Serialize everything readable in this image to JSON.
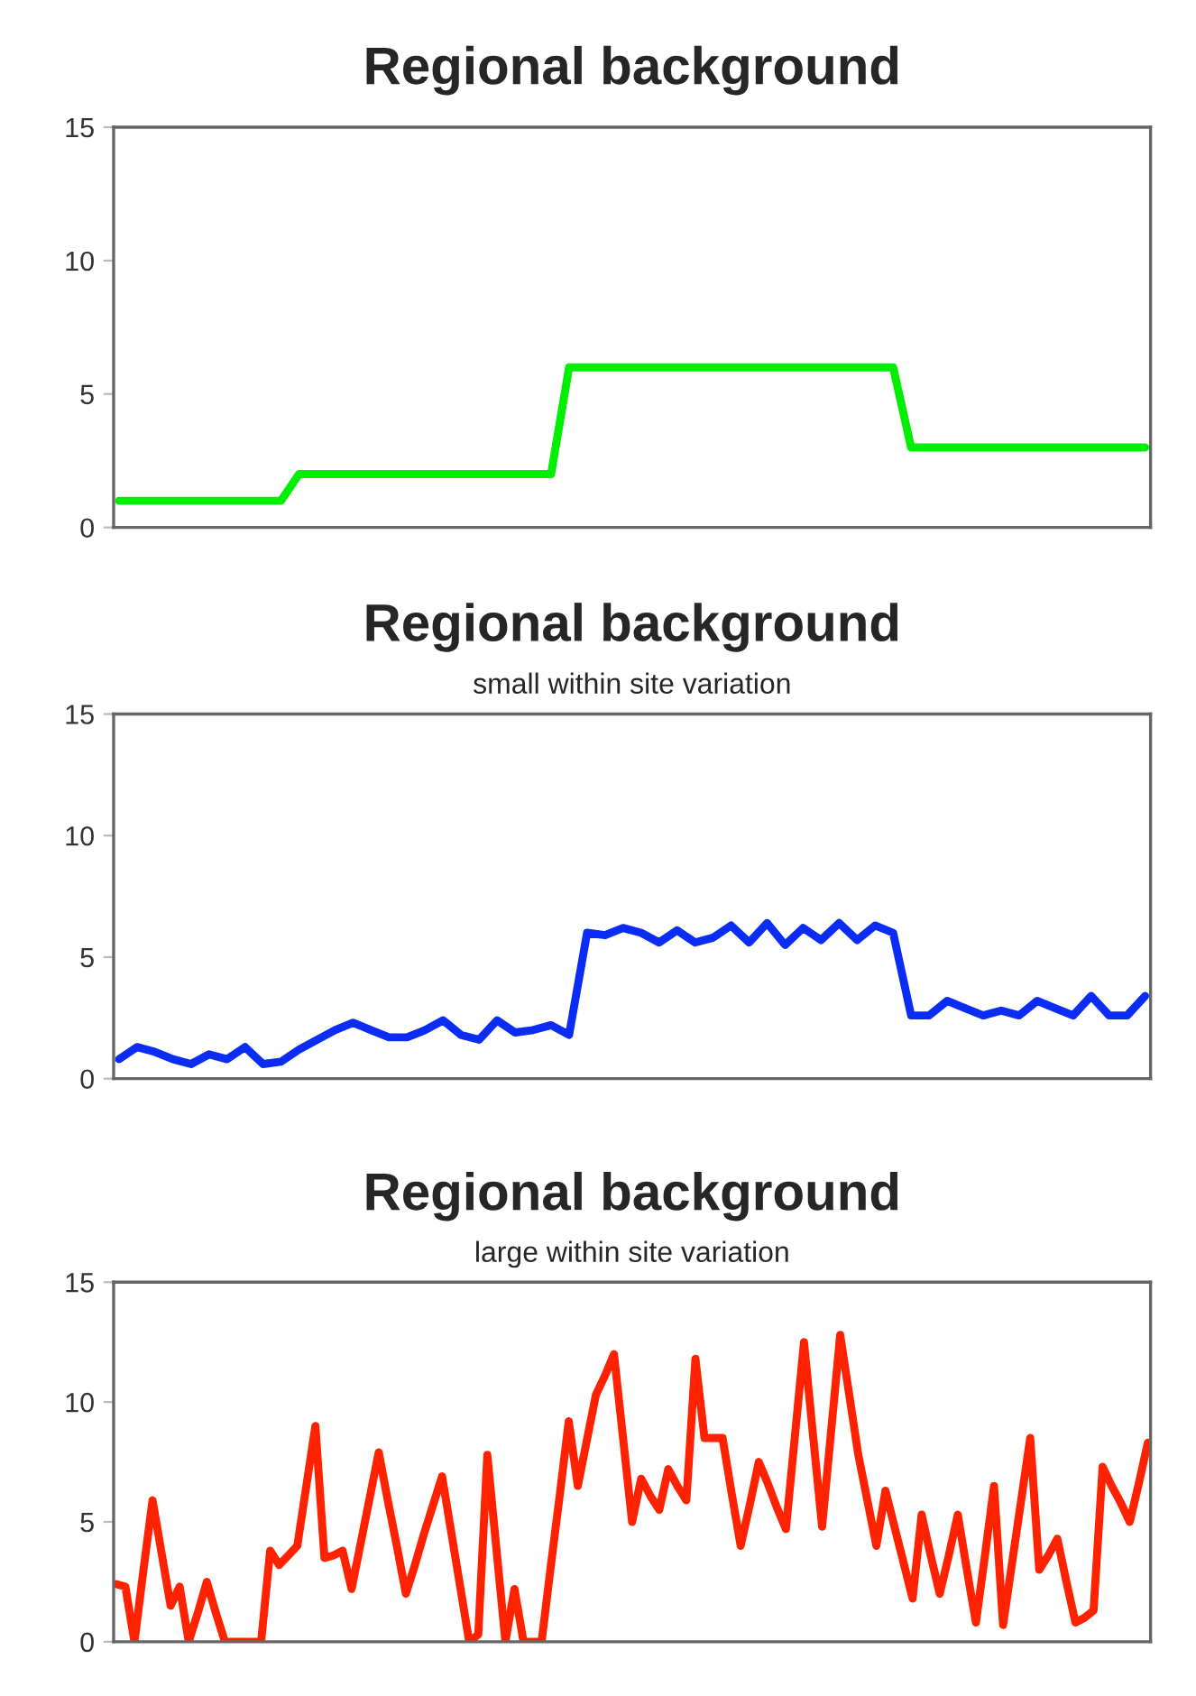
{
  "chart_data": [
    {
      "type": "line",
      "title": "Regional background",
      "categories": [
        null,
        null,
        null,
        null,
        null,
        null,
        null,
        null,
        null,
        null,
        null,
        null,
        null,
        null,
        null,
        null,
        null,
        null,
        null,
        null,
        null,
        null,
        null,
        null,
        null,
        null,
        null,
        null,
        null,
        null,
        null,
        null,
        null,
        null,
        null,
        null,
        null,
        null,
        null,
        null,
        null,
        null,
        null,
        null,
        null,
        null,
        null,
        null,
        null,
        null,
        null,
        null,
        null,
        null,
        null,
        null,
        null,
        null
      ],
      "ylim": [
        0,
        15
      ],
      "yticks": [
        0,
        5,
        10,
        15
      ],
      "tick_labels": "y",
      "series": [
        {
          "color": "#00ee00",
          "values": [
            1,
            1,
            1,
            1,
            1,
            1,
            1,
            1,
            1,
            1,
            2,
            2,
            2,
            2,
            2,
            2,
            2,
            2,
            2,
            2,
            2,
            2,
            2,
            2,
            2,
            6,
            6,
            6,
            6,
            6,
            6,
            6,
            6,
            6,
            6,
            6,
            6,
            6,
            6,
            6,
            6,
            6,
            6,
            6,
            3,
            3,
            3,
            3,
            3,
            3,
            3,
            3,
            3,
            3,
            3,
            3,
            3,
            3
          ]
        }
      ]
    },
    {
      "type": "line",
      "title": "Regional background",
      "subtitle": "small within site variation",
      "categories": [
        null,
        null,
        null,
        null,
        null,
        null,
        null,
        null,
        null,
        null,
        null,
        null,
        null,
        null,
        null,
        null,
        null,
        null,
        null,
        null,
        null,
        null,
        null,
        null,
        null,
        null,
        null,
        null,
        null,
        null,
        null,
        null,
        null,
        null,
        null,
        null,
        null,
        null,
        null,
        null,
        null,
        null,
        null,
        null,
        null,
        null,
        null,
        null,
        null,
        null,
        null,
        null,
        null,
        null,
        null,
        null,
        null,
        null
      ],
      "ylim": [
        0,
        15
      ],
      "yticks": [
        0,
        5,
        10,
        15
      ],
      "tick_labels": "y",
      "series": [
        {
          "color": "#0a2cf5",
          "values": [
            0.8,
            1.3,
            1.1,
            0.8,
            0.6,
            1.0,
            0.8,
            1.3,
            0.6,
            0.7,
            1.2,
            1.6,
            2.0,
            2.3,
            2.0,
            1.7,
            1.7,
            2.0,
            2.4,
            1.8,
            1.6,
            2.4,
            1.9,
            2.0,
            2.2,
            1.8,
            6.0,
            5.9,
            6.2,
            6.0,
            5.6,
            6.1,
            5.6,
            5.8,
            6.3,
            5.6,
            6.4,
            5.5,
            6.2,
            5.7,
            6.4,
            5.7,
            6.3,
            6.0,
            2.6,
            2.6,
            3.2,
            2.9,
            2.6,
            2.8,
            2.6,
            3.2,
            2.9,
            2.6,
            3.4,
            2.6,
            2.6,
            3.4
          ]
        }
      ]
    },
    {
      "type": "line",
      "title": "Regional background",
      "subtitle": "large within site variation",
      "categories": [
        null,
        null,
        null,
        null,
        null,
        null,
        null,
        null,
        null,
        null,
        null,
        null,
        null,
        null,
        null,
        null,
        null,
        null,
        null,
        null,
        null,
        null,
        null,
        null,
        null,
        null,
        null,
        null,
        null,
        null,
        null,
        null,
        null,
        null,
        null,
        null,
        null,
        null,
        null,
        null,
        null,
        null,
        null,
        null,
        null,
        null,
        null,
        null,
        null,
        null,
        null,
        null,
        null,
        null,
        null,
        null,
        null,
        null,
        null,
        null,
        null,
        null,
        null,
        null,
        null,
        null,
        null,
        null,
        null,
        null,
        null,
        null,
        null,
        null,
        null,
        null,
        null,
        null,
        null,
        null,
        null,
        null,
        null,
        null,
        null,
        null,
        null,
        null,
        null,
        null,
        null,
        null,
        null,
        null,
        null,
        null,
        null,
        null,
        null,
        null,
        null,
        null,
        null,
        null,
        null,
        null,
        null,
        null,
        null,
        null,
        null,
        null,
        null,
        null,
        null
      ],
      "ylim": [
        0,
        15
      ],
      "yticks": [
        0,
        5,
        10,
        15
      ],
      "tick_labels": "y",
      "series": [
        {
          "color": "#ff2200",
          "values": [
            2.4,
            2.3,
            0,
            3.0,
            5.9,
            3.7,
            1.5,
            2.3,
            0,
            1.2,
            2.5,
            1.2,
            0,
            0,
            0,
            0,
            0,
            3.8,
            3.2,
            3.6,
            4.0,
            6.5,
            9.0,
            3.5,
            3.6,
            3.8,
            2.2,
            4.1,
            6.0,
            7.9,
            5.9,
            4.0,
            2.0,
            3.2,
            4.5,
            5.7,
            6.9,
            4.6,
            2.3,
            0,
            0.3,
            7.8,
            3.9,
            0,
            2.2,
            0,
            0,
            0,
            3.1,
            6.1,
            9.2,
            6.5,
            8.4,
            10.3,
            11.1,
            12.0,
            8.5,
            5.0,
            6.8,
            6.1,
            5.5,
            7.2,
            6.5,
            5.9,
            11.8,
            8.5,
            8.5,
            8.5,
            6.2,
            4.0,
            5.7,
            7.5,
            6.6,
            5.6,
            4.7,
            8.6,
            12.5,
            8.6,
            4.8,
            8.8,
            12.8,
            10.3,
            7.8,
            5.9,
            4.0,
            6.3,
            4.8,
            3.3,
            1.8,
            5.3,
            3.6,
            2.0,
            3.6,
            5.3,
            3.0,
            0.8,
            3.6,
            6.5,
            0.7,
            3.3,
            5.9,
            8.5,
            3.0,
            3.6,
            4.3,
            2.5,
            0.8,
            1.0,
            1.3,
            7.3,
            6.5,
            5.8,
            5.0,
            6.6,
            8.3
          ]
        }
      ]
    }
  ]
}
